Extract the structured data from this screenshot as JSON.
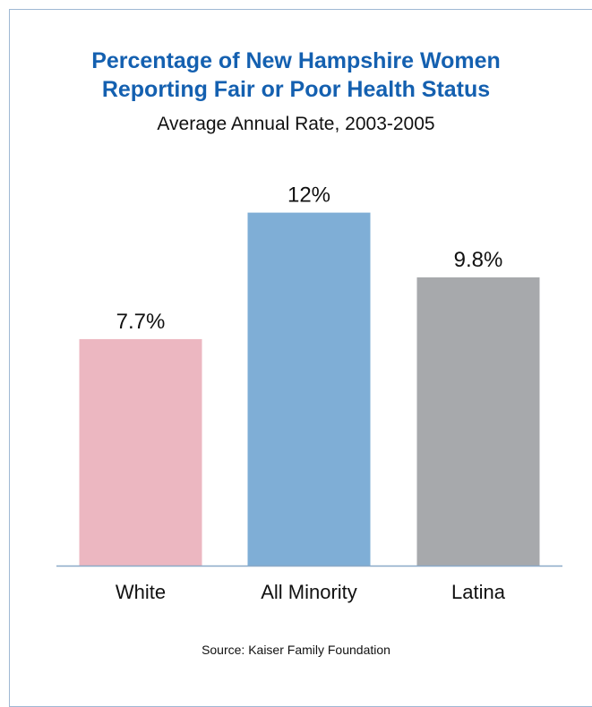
{
  "chart_data": {
    "type": "bar",
    "title": [
      "Percentage of New Hampshire Women",
      "Reporting Fair or Poor Health Status"
    ],
    "subtitle": "Average Annual Rate, 2003-2005",
    "categories": [
      "White",
      "All Minority",
      "Latina"
    ],
    "values": [
      7.7,
      12,
      9.8
    ],
    "data_labels": [
      "7.7%",
      "12%",
      "9.8%"
    ],
    "colors": [
      "#ecb7c1",
      "#7faed6",
      "#a7a9ac"
    ],
    "axis_color": "#8aa9c8",
    "ylim": [
      0,
      13.6
    ],
    "grid": false,
    "legend": "none"
  },
  "source": "Source: Kaiser Family Foundation"
}
